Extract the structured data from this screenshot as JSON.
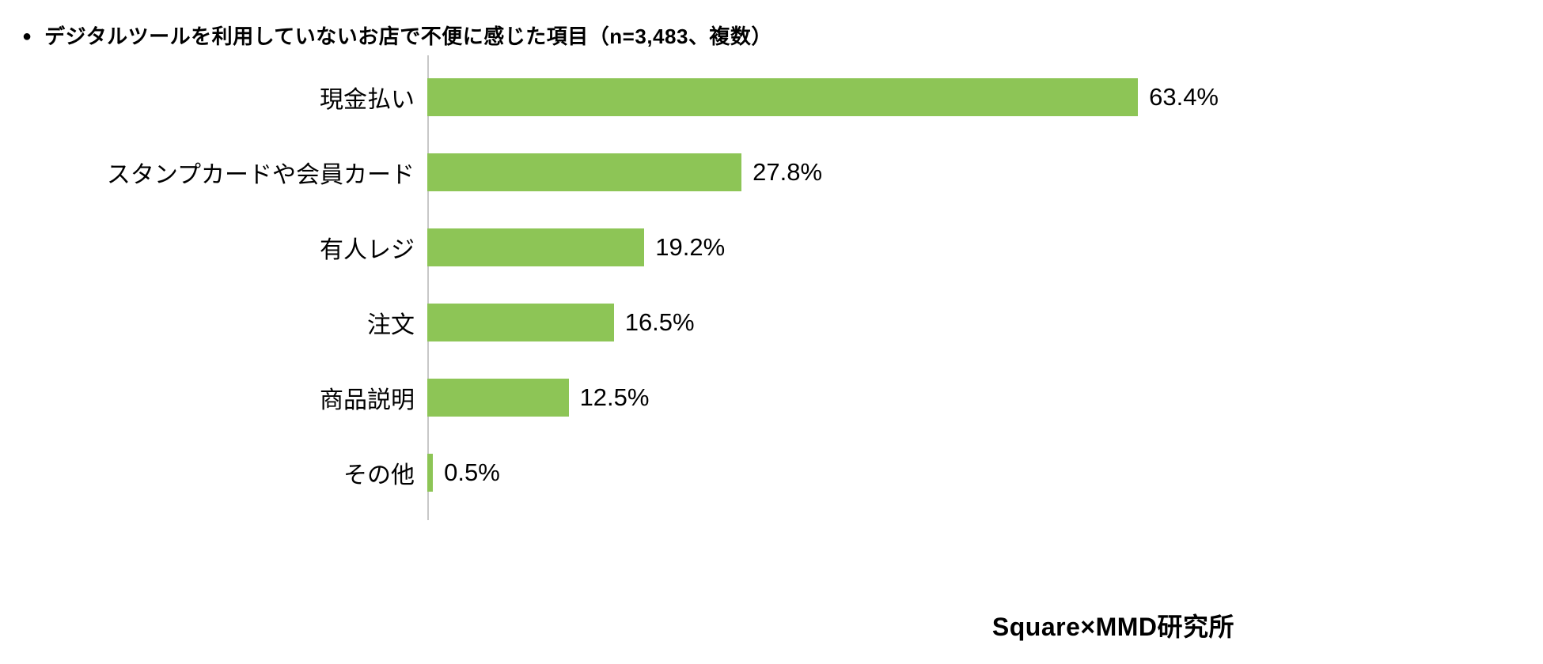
{
  "title": {
    "bullet": "●",
    "text": "デジタルツールを利用していないお店で不便に感じた項目（n=3,483、複数）"
  },
  "source": "Square×MMD研究所",
  "colors": {
    "bar": "#8dc556",
    "axis": "#c8c8c8",
    "text": "#000000"
  },
  "chart_data": {
    "type": "bar",
    "orientation": "horizontal",
    "title": "デジタルツールを利用していないお店で不便に感じた項目（n=3,483、複数）",
    "categories": [
      "現金払い",
      "スタンプカードや会員カード",
      "有人レジ",
      "注文",
      "商品説明",
      "その他"
    ],
    "values": [
      63.4,
      27.8,
      19.2,
      16.5,
      12.5,
      0.5
    ],
    "value_labels": [
      "63.4%",
      "27.8%",
      "19.2%",
      "16.5%",
      "12.5%",
      "0.5%"
    ],
    "xlabel": "",
    "ylabel": "",
    "xlim": [
      0,
      70
    ],
    "grid": false,
    "legend": false
  }
}
